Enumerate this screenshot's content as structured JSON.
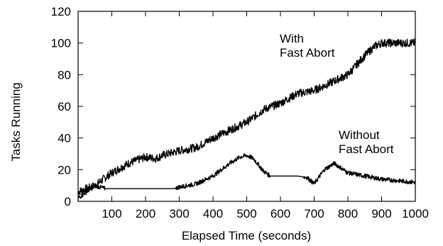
{
  "chart_data": {
    "type": "line",
    "title": "",
    "xlabel": "Elapsed Time (seconds)",
    "ylabel": "Tasks Running",
    "xlim": [
      0,
      1000
    ],
    "ylim": [
      0,
      120
    ],
    "x_ticks": [
      100,
      200,
      300,
      400,
      500,
      600,
      700,
      800,
      900,
      1000
    ],
    "y_ticks": [
      0,
      20,
      40,
      60,
      80,
      100,
      120
    ],
    "grid": false,
    "legend": "none",
    "line_color": "#000000",
    "series": [
      {
        "x": [
          0,
          50,
          100,
          150,
          200,
          230,
          250,
          300,
          350,
          400,
          450,
          480,
          500,
          520,
          550,
          600,
          650,
          700,
          750,
          800,
          850,
          880,
          900,
          950,
          1000
        ],
        "values": [
          6,
          10,
          18,
          24,
          28,
          27,
          29,
          32,
          34,
          40,
          45,
          48,
          50,
          53,
          58,
          62,
          68,
          70,
          75,
          80,
          92,
          98,
          100,
          100,
          100
        ]
      },
      {
        "x": [
          0,
          50,
          80,
          100,
          200,
          280,
          300,
          350,
          400,
          450,
          480,
          500,
          520,
          550,
          570,
          600,
          650,
          680,
          700,
          730,
          760,
          800,
          850,
          900,
          1000
        ],
        "values": [
          2,
          10,
          8,
          8,
          8,
          8,
          9,
          11,
          16,
          24,
          28,
          29,
          27,
          19,
          16,
          16,
          16,
          15,
          11,
          20,
          24,
          18,
          16,
          14,
          12
        ]
      }
    ],
    "annotations": [
      {
        "lines": [
          "With",
          "Fast Abort"
        ],
        "series": 0
      },
      {
        "lines": [
          "Without",
          "Fast Abort"
        ],
        "series": 1
      }
    ]
  }
}
